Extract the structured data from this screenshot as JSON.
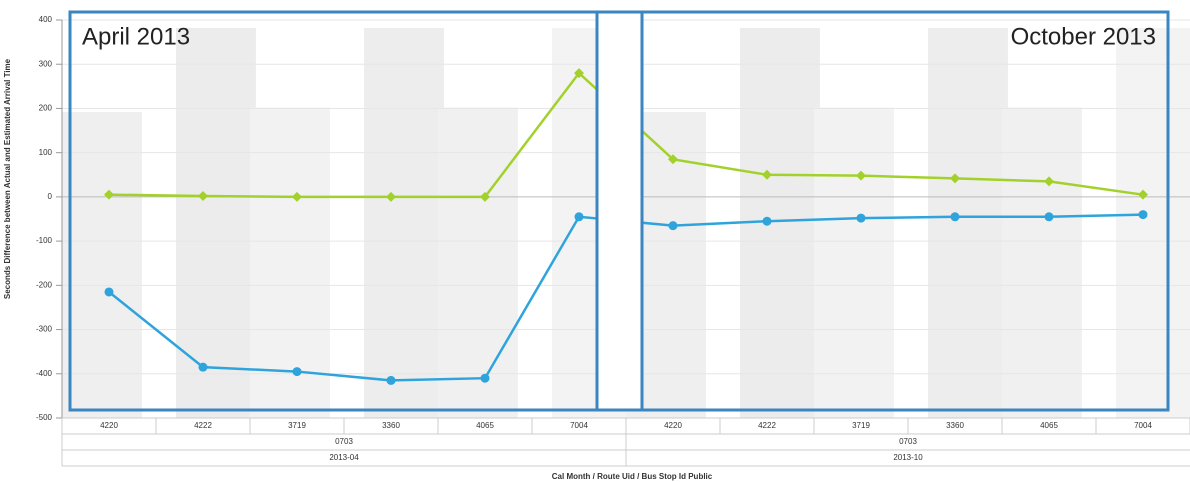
{
  "chart_data": {
    "type": "line",
    "y_label": "Seconds Difference between Actual and Estimated Arrival Time",
    "x_label": "Cal Month / Route Uid / Bus Stop Id Public",
    "categories": [
      "4220",
      "4222",
      "3719",
      "3360",
      "4065",
      "7004",
      "4220",
      "4222",
      "3719",
      "3360",
      "4065",
      "7004"
    ],
    "route_groups": [
      "0703",
      "0703"
    ],
    "month_groups": [
      "2013-04",
      "2013-10"
    ],
    "annotations": [
      "April 2013",
      "October 2013"
    ],
    "series": [
      {
        "color": "#a3d12b",
        "values": [
          5,
          2,
          0,
          0,
          0,
          280,
          85,
          50,
          48,
          42,
          35,
          5
        ]
      },
      {
        "color": "#2fa4dc",
        "values": [
          -215,
          -385,
          -395,
          -415,
          -410,
          -45,
          -65,
          -55,
          -48,
          -45,
          -45,
          -40
        ]
      }
    ],
    "ylim": [
      -500,
      400
    ],
    "yticks": [
      -500,
      -400,
      -300,
      -200,
      -100,
      0,
      100,
      200,
      300,
      400
    ],
    "grid": true
  }
}
